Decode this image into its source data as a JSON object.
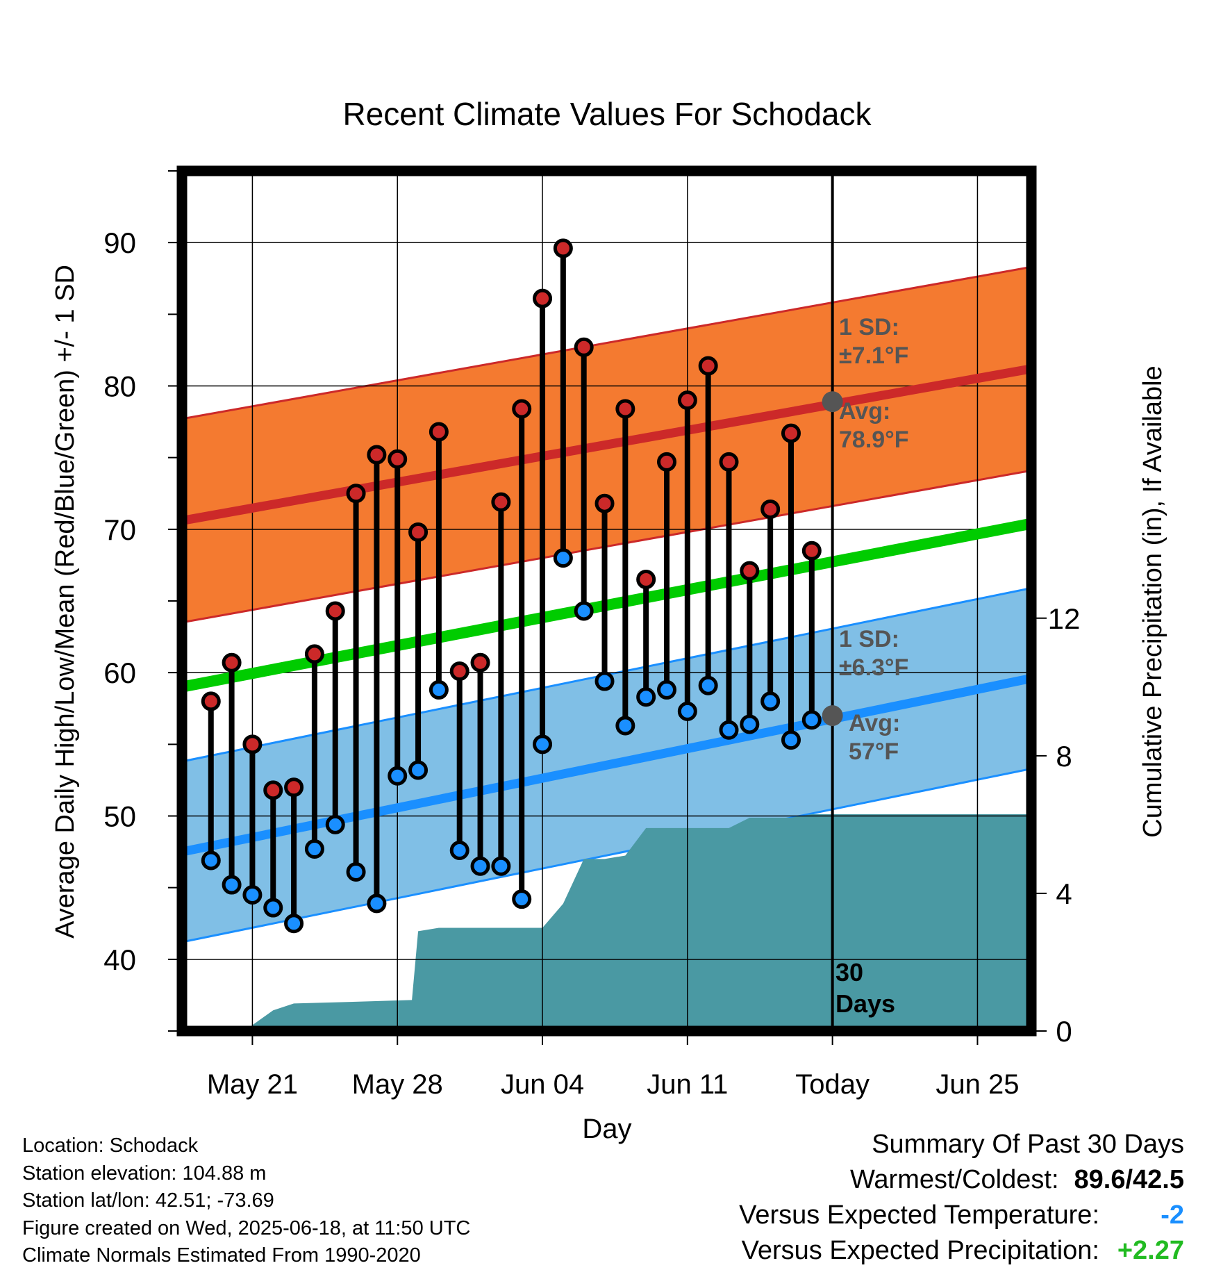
{
  "colors": {
    "high_dot": "#cc2929",
    "low_dot": "#1a8fff",
    "orange_band": "#f47a30",
    "blue_band": "#80bfe6",
    "red_line": "#cc2929",
    "blue_line": "#1a8fff",
    "green_line": "#00cc00",
    "precip_fill": "#4a99a3",
    "avg_marker": "#555555",
    "negative_value": "#1a8fff",
    "positive_value": "#22bb22"
  },
  "chart_data": {
    "type": "line",
    "title": "Recent Climate Values For Schodack",
    "xlabel": "Day",
    "ylabel_left": "Average Daily High/Low/Mean (Red/Blue/Green) +/- 1 SD",
    "ylabel_right": "Cumulative Precipitation (in), If Available",
    "x_tick_labels": [
      "May 21",
      "May 28",
      "Jun 04",
      "Jun 11",
      "Today",
      "Jun 25"
    ],
    "x_tick_days": [
      -28,
      -21,
      -14,
      -7,
      0,
      7
    ],
    "y_left_ticks": [
      40,
      50,
      60,
      70,
      80,
      90
    ],
    "y_left_range": [
      35,
      95
    ],
    "y_right_ticks": [
      0,
      4,
      8,
      12
    ],
    "y_right_range": [
      0,
      25
    ],
    "x_range_days": [
      -31.4,
      9.6
    ],
    "grid": true,
    "days": [
      -30,
      -29,
      -28,
      -27,
      -26,
      -25,
      -24,
      -23,
      -22,
      -21,
      -20,
      -19,
      -18,
      -17,
      -16,
      -15,
      -14,
      -13,
      -12,
      -11,
      -10,
      -9,
      -8,
      -7,
      -6,
      -5,
      -4,
      -3,
      -2,
      -1
    ],
    "series": [
      {
        "name": "High",
        "values": [
          58.0,
          60.7,
          55.0,
          51.8,
          52.0,
          61.3,
          64.3,
          72.5,
          75.2,
          74.9,
          69.8,
          76.8,
          60.1,
          60.7,
          71.9,
          78.4,
          86.1,
          89.6,
          82.7,
          71.8,
          78.4,
          66.5,
          74.7,
          79.0,
          81.4,
          74.7,
          67.1,
          71.4,
          76.7,
          68.5
        ]
      },
      {
        "name": "Low",
        "values": [
          46.9,
          45.2,
          44.5,
          43.6,
          42.5,
          47.7,
          49.4,
          46.1,
          43.9,
          52.8,
          53.2,
          58.8,
          47.6,
          46.5,
          46.5,
          44.2,
          55.0,
          68.0,
          64.3,
          59.4,
          56.3,
          58.3,
          58.8,
          57.3,
          59.1,
          56.0,
          56.4,
          58.0,
          55.3,
          56.7
        ]
      }
    ],
    "normals": {
      "high_avg": [
        70.6,
        81.2
      ],
      "high_sd": 7.1,
      "low_avg": [
        47.5,
        59.6
      ],
      "low_sd": 6.3,
      "mean_avg": [
        59.0,
        70.4
      ]
    },
    "precip_cumulative": {
      "days": [
        -28.4,
        -27,
        -26,
        -23,
        -20.3,
        -20,
        -19,
        -17,
        -16,
        -14,
        -13,
        -12,
        -11,
        -10,
        -9,
        -8,
        -7,
        -5,
        -4,
        -3,
        -2,
        -1,
        0,
        9.6
      ],
      "values": [
        0,
        0.6,
        0.8,
        0.85,
        0.9,
        2.9,
        3.0,
        3.0,
        3.0,
        3.0,
        3.7,
        5.0,
        5.0,
        5.1,
        5.9,
        5.9,
        5.9,
        5.9,
        6.2,
        6.2,
        6.2,
        6.3,
        6.3,
        6.3
      ]
    },
    "annotations": {
      "high_sd_label": "1 SD:",
      "high_sd_value": "±7.1°F",
      "high_avg_label": "Avg:",
      "high_avg_value": "78.9°F",
      "low_sd_label": "1 SD:",
      "low_sd_value": "±6.3°F",
      "low_avg_label": "Avg:",
      "low_avg_value": "57°F",
      "today_avg_high": 78.9,
      "today_avg_low": 57,
      "window_number": "30",
      "window_label": "Days"
    }
  },
  "info": {
    "location": "Location: Schodack",
    "elevation": "Station elevation: 104.88 m",
    "latlon": "Station lat/lon: 42.51; -73.69",
    "created": "Figure created on Wed, 2025-06-18, at 11:50 UTC",
    "normals": "Climate Normals Estimated From 1990-2020"
  },
  "summary": {
    "heading": "Summary Of Past 30 Days",
    "warmest_coldest_label": "Warmest/Coldest:",
    "warmest_coldest_value": "89.6/42.5",
    "temp_label": "Versus Expected Temperature:",
    "temp_value": "-2",
    "precip_label": "Versus Expected Precipitation:",
    "precip_value": "+2.27"
  }
}
